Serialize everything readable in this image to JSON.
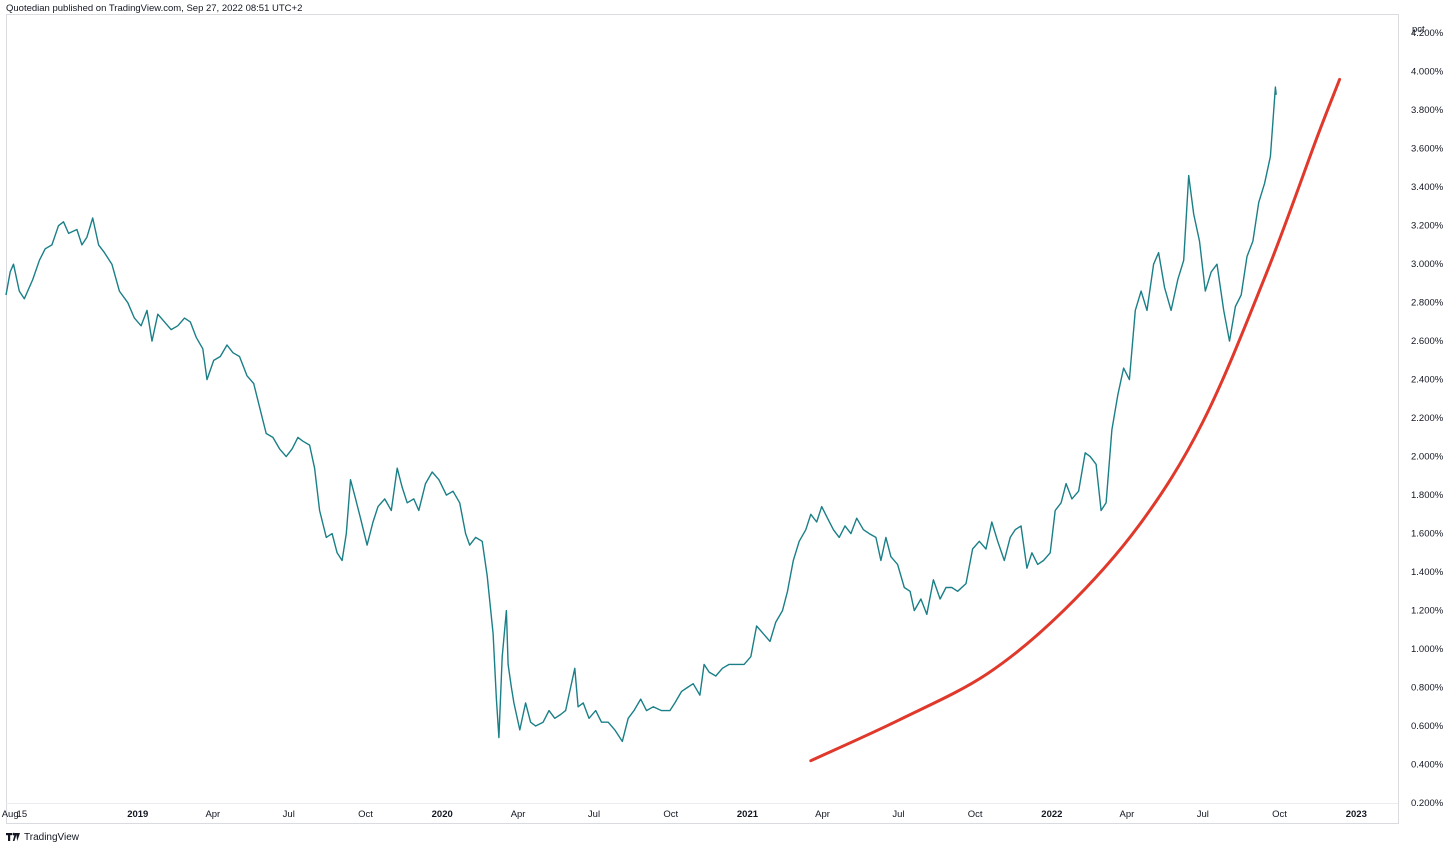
{
  "header": {
    "text": "Quotedian published on TradingView.com, Sep 27, 2022 08:51 UTC+2"
  },
  "footer": {
    "brand": "TradingView",
    "logo_icon": "tradingview-logo-icon"
  },
  "chart_data": {
    "type": "line",
    "title": "",
    "xlabel": "",
    "ylabel": "",
    "y_unit_label": "pct",
    "ylim": [
      0.2,
      4.3
    ],
    "y_ticks": [
      "0.200%",
      "0.400%",
      "0.600%",
      "0.800%",
      "1.000%",
      "1.200%",
      "1.400%",
      "1.600%",
      "1.800%",
      "2.000%",
      "2.200%",
      "2.400%",
      "2.600%",
      "2.800%",
      "3.000%",
      "3.200%",
      "3.400%",
      "3.600%",
      "3.800%",
      "4.000%",
      "4.200%"
    ],
    "y_tick_values": [
      0.2,
      0.4,
      0.6,
      0.8,
      1.0,
      1.2,
      1.4,
      1.6,
      1.8,
      2.0,
      2.2,
      2.4,
      2.6,
      2.8,
      3.0,
      3.2,
      3.4,
      3.6,
      3.8,
      4.0,
      4.2
    ],
    "x_range": [
      "2018-07-27",
      "2023-02-20"
    ],
    "x_ticks": [
      {
        "label": "Aug",
        "date": "2018-08-01",
        "year": false
      },
      {
        "label": "15",
        "date": "2018-08-15",
        "year": false
      },
      {
        "label": "2019",
        "date": "2019-01-01",
        "year": true
      },
      {
        "label": "Apr",
        "date": "2019-04-01",
        "year": false
      },
      {
        "label": "Jul",
        "date": "2019-07-01",
        "year": false
      },
      {
        "label": "Oct",
        "date": "2019-10-01",
        "year": false
      },
      {
        "label": "2020",
        "date": "2020-01-01",
        "year": true
      },
      {
        "label": "Apr",
        "date": "2020-04-01",
        "year": false
      },
      {
        "label": "Jul",
        "date": "2020-07-01",
        "year": false
      },
      {
        "label": "Oct",
        "date": "2020-10-01",
        "year": false
      },
      {
        "label": "2021",
        "date": "2021-01-01",
        "year": true
      },
      {
        "label": "Apr",
        "date": "2021-04-01",
        "year": false
      },
      {
        "label": "Jul",
        "date": "2021-07-01",
        "year": false
      },
      {
        "label": "Oct",
        "date": "2021-10-01",
        "year": false
      },
      {
        "label": "2022",
        "date": "2022-01-01",
        "year": true
      },
      {
        "label": "Apr",
        "date": "2022-04-01",
        "year": false
      },
      {
        "label": "Jul",
        "date": "2022-07-01",
        "year": false
      },
      {
        "label": "Oct",
        "date": "2022-10-01",
        "year": false
      },
      {
        "label": "2023",
        "date": "2023-01-01",
        "year": true
      }
    ],
    "series": [
      {
        "color": "#1a7f87",
        "points": [
          [
            "2018-07-27",
            2.84
          ],
          [
            "2018-08-01",
            2.96
          ],
          [
            "2018-08-05",
            3.0
          ],
          [
            "2018-08-12",
            2.86
          ],
          [
            "2018-08-18",
            2.82
          ],
          [
            "2018-08-28",
            2.92
          ],
          [
            "2018-09-05",
            3.02
          ],
          [
            "2018-09-12",
            3.08
          ],
          [
            "2018-09-20",
            3.1
          ],
          [
            "2018-09-28",
            3.2
          ],
          [
            "2018-10-04",
            3.22
          ],
          [
            "2018-10-10",
            3.16
          ],
          [
            "2018-10-20",
            3.18
          ],
          [
            "2018-10-26",
            3.1
          ],
          [
            "2018-11-01",
            3.14
          ],
          [
            "2018-11-08",
            3.24
          ],
          [
            "2018-11-15",
            3.1
          ],
          [
            "2018-11-22",
            3.06
          ],
          [
            "2018-12-01",
            3.0
          ],
          [
            "2018-12-10",
            2.86
          ],
          [
            "2018-12-20",
            2.8
          ],
          [
            "2018-12-28",
            2.72
          ],
          [
            "2019-01-05",
            2.68
          ],
          [
            "2019-01-12",
            2.76
          ],
          [
            "2019-01-18",
            2.6
          ],
          [
            "2019-01-25",
            2.74
          ],
          [
            "2019-02-02",
            2.7
          ],
          [
            "2019-02-10",
            2.66
          ],
          [
            "2019-02-18",
            2.68
          ],
          [
            "2019-02-26",
            2.72
          ],
          [
            "2019-03-05",
            2.7
          ],
          [
            "2019-03-12",
            2.62
          ],
          [
            "2019-03-20",
            2.56
          ],
          [
            "2019-03-25",
            2.4
          ],
          [
            "2019-04-02",
            2.5
          ],
          [
            "2019-04-10",
            2.52
          ],
          [
            "2019-04-18",
            2.58
          ],
          [
            "2019-04-25",
            2.54
          ],
          [
            "2019-05-03",
            2.52
          ],
          [
            "2019-05-12",
            2.42
          ],
          [
            "2019-05-20",
            2.38
          ],
          [
            "2019-05-28",
            2.24
          ],
          [
            "2019-06-04",
            2.12
          ],
          [
            "2019-06-12",
            2.1
          ],
          [
            "2019-06-20",
            2.04
          ],
          [
            "2019-06-28",
            2.0
          ],
          [
            "2019-07-05",
            2.04
          ],
          [
            "2019-07-12",
            2.1
          ],
          [
            "2019-07-18",
            2.08
          ],
          [
            "2019-07-26",
            2.06
          ],
          [
            "2019-08-01",
            1.94
          ],
          [
            "2019-08-07",
            1.72
          ],
          [
            "2019-08-15",
            1.58
          ],
          [
            "2019-08-22",
            1.6
          ],
          [
            "2019-08-28",
            1.5
          ],
          [
            "2019-09-03",
            1.46
          ],
          [
            "2019-09-08",
            1.6
          ],
          [
            "2019-09-13",
            1.88
          ],
          [
            "2019-09-18",
            1.8
          ],
          [
            "2019-09-25",
            1.68
          ],
          [
            "2019-10-03",
            1.54
          ],
          [
            "2019-10-10",
            1.66
          ],
          [
            "2019-10-16",
            1.74
          ],
          [
            "2019-10-24",
            1.78
          ],
          [
            "2019-11-01",
            1.72
          ],
          [
            "2019-11-08",
            1.94
          ],
          [
            "2019-11-14",
            1.84
          ],
          [
            "2019-11-20",
            1.76
          ],
          [
            "2019-11-28",
            1.78
          ],
          [
            "2019-12-04",
            1.72
          ],
          [
            "2019-12-12",
            1.86
          ],
          [
            "2019-12-20",
            1.92
          ],
          [
            "2019-12-28",
            1.88
          ],
          [
            "2020-01-06",
            1.8
          ],
          [
            "2020-01-14",
            1.82
          ],
          [
            "2020-01-22",
            1.76
          ],
          [
            "2020-01-29",
            1.6
          ],
          [
            "2020-02-03",
            1.54
          ],
          [
            "2020-02-10",
            1.58
          ],
          [
            "2020-02-18",
            1.56
          ],
          [
            "2020-02-24",
            1.38
          ],
          [
            "2020-03-02",
            1.08
          ],
          [
            "2020-03-06",
            0.74
          ],
          [
            "2020-03-09",
            0.54
          ],
          [
            "2020-03-13",
            0.96
          ],
          [
            "2020-03-18",
            1.2
          ],
          [
            "2020-03-20",
            0.92
          ],
          [
            "2020-03-24",
            0.8
          ],
          [
            "2020-03-27",
            0.72
          ],
          [
            "2020-04-03",
            0.58
          ],
          [
            "2020-04-10",
            0.72
          ],
          [
            "2020-04-16",
            0.62
          ],
          [
            "2020-04-22",
            0.6
          ],
          [
            "2020-05-01",
            0.62
          ],
          [
            "2020-05-08",
            0.68
          ],
          [
            "2020-05-15",
            0.64
          ],
          [
            "2020-05-22",
            0.66
          ],
          [
            "2020-05-28",
            0.68
          ],
          [
            "2020-06-03",
            0.8
          ],
          [
            "2020-06-08",
            0.9
          ],
          [
            "2020-06-12",
            0.7
          ],
          [
            "2020-06-18",
            0.72
          ],
          [
            "2020-06-25",
            0.64
          ],
          [
            "2020-07-03",
            0.68
          ],
          [
            "2020-07-10",
            0.62
          ],
          [
            "2020-07-18",
            0.62
          ],
          [
            "2020-07-26",
            0.58
          ],
          [
            "2020-08-04",
            0.52
          ],
          [
            "2020-08-11",
            0.64
          ],
          [
            "2020-08-18",
            0.68
          ],
          [
            "2020-08-26",
            0.74
          ],
          [
            "2020-09-02",
            0.68
          ],
          [
            "2020-09-10",
            0.7
          ],
          [
            "2020-09-20",
            0.68
          ],
          [
            "2020-09-30",
            0.68
          ],
          [
            "2020-10-06",
            0.72
          ],
          [
            "2020-10-14",
            0.78
          ],
          [
            "2020-10-21",
            0.8
          ],
          [
            "2020-10-28",
            0.82
          ],
          [
            "2020-11-05",
            0.76
          ],
          [
            "2020-11-10",
            0.92
          ],
          [
            "2020-11-16",
            0.88
          ],
          [
            "2020-11-24",
            0.86
          ],
          [
            "2020-12-02",
            0.9
          ],
          [
            "2020-12-10",
            0.92
          ],
          [
            "2020-12-18",
            0.92
          ],
          [
            "2020-12-28",
            0.92
          ],
          [
            "2021-01-05",
            0.96
          ],
          [
            "2021-01-12",
            1.12
          ],
          [
            "2021-01-20",
            1.08
          ],
          [
            "2021-01-28",
            1.04
          ],
          [
            "2021-02-04",
            1.14
          ],
          [
            "2021-02-12",
            1.2
          ],
          [
            "2021-02-18",
            1.3
          ],
          [
            "2021-02-25",
            1.46
          ],
          [
            "2021-03-04",
            1.56
          ],
          [
            "2021-03-12",
            1.62
          ],
          [
            "2021-03-18",
            1.7
          ],
          [
            "2021-03-25",
            1.66
          ],
          [
            "2021-03-31",
            1.74
          ],
          [
            "2021-04-07",
            1.68
          ],
          [
            "2021-04-14",
            1.62
          ],
          [
            "2021-04-21",
            1.58
          ],
          [
            "2021-04-28",
            1.64
          ],
          [
            "2021-05-05",
            1.6
          ],
          [
            "2021-05-12",
            1.68
          ],
          [
            "2021-05-20",
            1.62
          ],
          [
            "2021-05-27",
            1.6
          ],
          [
            "2021-06-04",
            1.58
          ],
          [
            "2021-06-10",
            1.46
          ],
          [
            "2021-06-16",
            1.58
          ],
          [
            "2021-06-22",
            1.48
          ],
          [
            "2021-06-30",
            1.44
          ],
          [
            "2021-07-08",
            1.32
          ],
          [
            "2021-07-15",
            1.3
          ],
          [
            "2021-07-20",
            1.2
          ],
          [
            "2021-07-28",
            1.26
          ],
          [
            "2021-08-04",
            1.18
          ],
          [
            "2021-08-12",
            1.36
          ],
          [
            "2021-08-20",
            1.26
          ],
          [
            "2021-08-27",
            1.32
          ],
          [
            "2021-09-03",
            1.32
          ],
          [
            "2021-09-10",
            1.3
          ],
          [
            "2021-09-20",
            1.34
          ],
          [
            "2021-09-28",
            1.52
          ],
          [
            "2021-10-06",
            1.56
          ],
          [
            "2021-10-14",
            1.52
          ],
          [
            "2021-10-21",
            1.66
          ],
          [
            "2021-10-28",
            1.56
          ],
          [
            "2021-11-05",
            1.46
          ],
          [
            "2021-11-12",
            1.58
          ],
          [
            "2021-11-18",
            1.62
          ],
          [
            "2021-11-25",
            1.64
          ],
          [
            "2021-12-02",
            1.42
          ],
          [
            "2021-12-08",
            1.5
          ],
          [
            "2021-12-15",
            1.44
          ],
          [
            "2021-12-22",
            1.46
          ],
          [
            "2021-12-30",
            1.5
          ],
          [
            "2022-01-05",
            1.72
          ],
          [
            "2022-01-12",
            1.76
          ],
          [
            "2022-01-18",
            1.86
          ],
          [
            "2022-01-25",
            1.78
          ],
          [
            "2022-02-02",
            1.82
          ],
          [
            "2022-02-10",
            2.02
          ],
          [
            "2022-02-16",
            2.0
          ],
          [
            "2022-02-23",
            1.96
          ],
          [
            "2022-03-01",
            1.72
          ],
          [
            "2022-03-07",
            1.76
          ],
          [
            "2022-03-14",
            2.14
          ],
          [
            "2022-03-21",
            2.32
          ],
          [
            "2022-03-28",
            2.46
          ],
          [
            "2022-04-04",
            2.4
          ],
          [
            "2022-04-11",
            2.76
          ],
          [
            "2022-04-18",
            2.86
          ],
          [
            "2022-04-25",
            2.76
          ],
          [
            "2022-05-03",
            3.0
          ],
          [
            "2022-05-09",
            3.06
          ],
          [
            "2022-05-16",
            2.88
          ],
          [
            "2022-05-24",
            2.76
          ],
          [
            "2022-06-01",
            2.92
          ],
          [
            "2022-06-08",
            3.02
          ],
          [
            "2022-06-14",
            3.46
          ],
          [
            "2022-06-20",
            3.26
          ],
          [
            "2022-06-27",
            3.12
          ],
          [
            "2022-07-04",
            2.86
          ],
          [
            "2022-07-11",
            2.96
          ],
          [
            "2022-07-18",
            3.0
          ],
          [
            "2022-07-26",
            2.76
          ],
          [
            "2022-08-02",
            2.6
          ],
          [
            "2022-08-09",
            2.78
          ],
          [
            "2022-08-16",
            2.84
          ],
          [
            "2022-08-23",
            3.04
          ],
          [
            "2022-08-30",
            3.12
          ],
          [
            "2022-09-06",
            3.32
          ],
          [
            "2022-09-13",
            3.42
          ],
          [
            "2022-09-20",
            3.56
          ],
          [
            "2022-09-23",
            3.74
          ],
          [
            "2022-09-26",
            3.92
          ],
          [
            "2022-09-27",
            3.88
          ]
        ]
      }
    ],
    "annotations": [
      {
        "type": "curve",
        "color": "#e0392b",
        "points": [
          [
            "2021-03-18",
            0.42
          ],
          [
            "2021-07-01",
            0.63
          ],
          [
            "2021-10-15",
            0.87
          ],
          [
            "2022-01-15",
            1.2
          ],
          [
            "2022-04-15",
            1.64
          ],
          [
            "2022-07-01",
            2.18
          ],
          [
            "2022-09-15",
            2.95
          ],
          [
            "2022-11-15",
            3.66
          ],
          [
            "2022-12-12",
            3.96
          ]
        ]
      }
    ]
  }
}
